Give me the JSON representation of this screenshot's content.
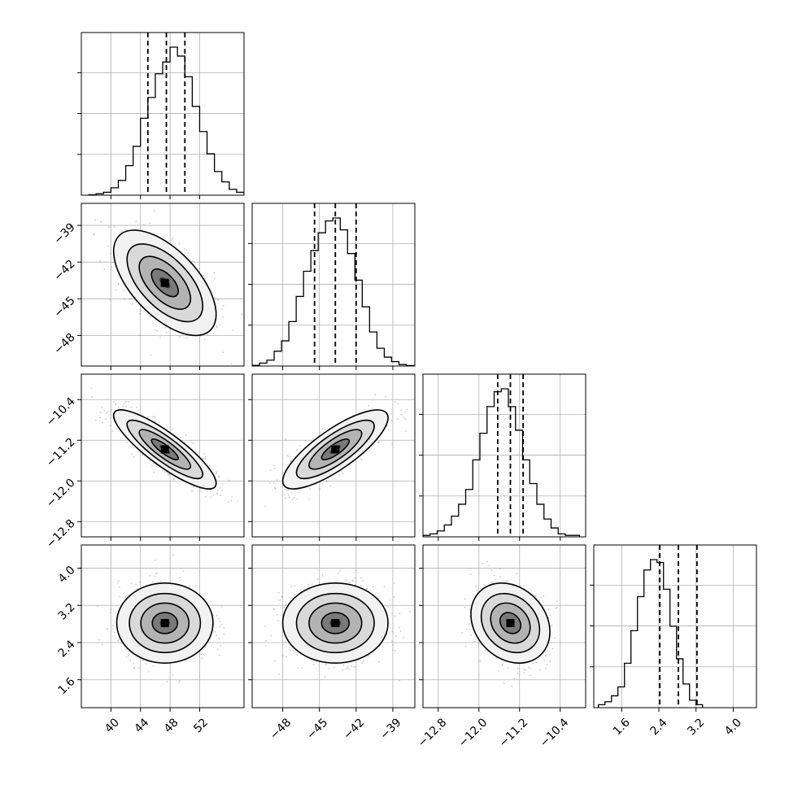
{
  "chart_data": {
    "type": "corner",
    "n_params": 4,
    "grid": true,
    "ranges": [
      [
        36,
        58
      ],
      [
        -50.5,
        -37.2
      ],
      [
        -13.1,
        -9.9
      ],
      [
        1.0,
        4.5
      ]
    ],
    "ticks": [
      [
        "40",
        "44",
        "48",
        "52"
      ],
      [
        "-48",
        "-45",
        "-42",
        "-39"
      ],
      [
        "-12.8",
        "-12.0",
        "-11.2",
        "-10.4"
      ],
      [
        "1.6",
        "2.4",
        "3.2",
        "4.0"
      ]
    ],
    "quantiles": [
      [
        45.0,
        47.5,
        50.0
      ],
      [
        -45.4,
        -43.7,
        -42.0
      ],
      [
        -11.63,
        -11.38,
        -11.13
      ],
      [
        2.42,
        2.82,
        3.22
      ]
    ],
    "marginals": [
      {
        "bin_start": 37.0,
        "bin_width": 1.0,
        "counts": [
          0.003,
          0.01,
          0.02,
          0.05,
          0.1,
          0.2,
          0.33,
          0.52,
          0.66,
          0.82,
          0.9,
          1.0,
          0.94,
          0.8,
          0.6,
          0.43,
          0.28,
          0.16,
          0.09,
          0.04,
          0.02,
          0.01
        ]
      },
      {
        "bin_start": -50.5,
        "bin_width": 0.6,
        "counts": [
          0.005,
          0.02,
          0.04,
          0.1,
          0.17,
          0.3,
          0.47,
          0.64,
          0.78,
          0.9,
          0.98,
          1.0,
          0.92,
          0.76,
          0.58,
          0.4,
          0.23,
          0.12,
          0.06,
          0.03,
          0.01,
          0.003
        ]
      },
      {
        "bin_start": -13.1,
        "bin_width": 0.14,
        "counts": [
          0.01,
          0.02,
          0.04,
          0.08,
          0.14,
          0.22,
          0.32,
          0.52,
          0.7,
          0.88,
          0.98,
          1.0,
          0.88,
          0.72,
          0.52,
          0.36,
          0.22,
          0.12,
          0.06,
          0.02,
          0.01,
          0.01
        ]
      },
      {
        "bin_start": 1.1,
        "bin_width": 0.14,
        "counts": [
          0.02,
          0.04,
          0.08,
          0.14,
          0.3,
          0.52,
          0.75,
          0.93,
          1.0,
          0.98,
          0.8,
          0.55,
          0.33,
          0.16,
          0.05,
          0.02
        ]
      }
    ],
    "joint": [
      {
        "x": 0,
        "y": 1,
        "mean_x": 47.3,
        "mean_y": -43.7,
        "sd_x": 3.3,
        "sd_y": 2.05,
        "rho": -0.6
      },
      {
        "x": 0,
        "y": 2,
        "mean_x": 47.3,
        "mean_y": -11.38,
        "sd_x": 3.3,
        "sd_y": 0.37,
        "rho": -0.86
      },
      {
        "x": 1,
        "y": 2,
        "mean_x": -43.7,
        "mean_y": -11.38,
        "sd_x": 2.05,
        "sd_y": 0.37,
        "rho": 0.8
      },
      {
        "x": 0,
        "y": 3,
        "mean_x": 47.3,
        "mean_y": 2.82,
        "sd_x": 3.1,
        "sd_y": 0.41,
        "rho": 0.0
      },
      {
        "x": 1,
        "y": 3,
        "mean_x": -43.7,
        "mean_y": 2.82,
        "sd_x": 2.05,
        "sd_y": 0.41,
        "rho": 0.0
      },
      {
        "x": 2,
        "y": 3,
        "mean_x": -11.38,
        "mean_y": 2.82,
        "sd_x": 0.37,
        "sd_y": 0.41,
        "rho": -0.22
      }
    ],
    "contour_levels": [
      0.5,
      1.0,
      1.5,
      2.0
    ],
    "colors": {
      "line": "#000000",
      "grid": "#b0b0b0",
      "scatter": "#8a8a8a",
      "frame": "#000000"
    }
  }
}
